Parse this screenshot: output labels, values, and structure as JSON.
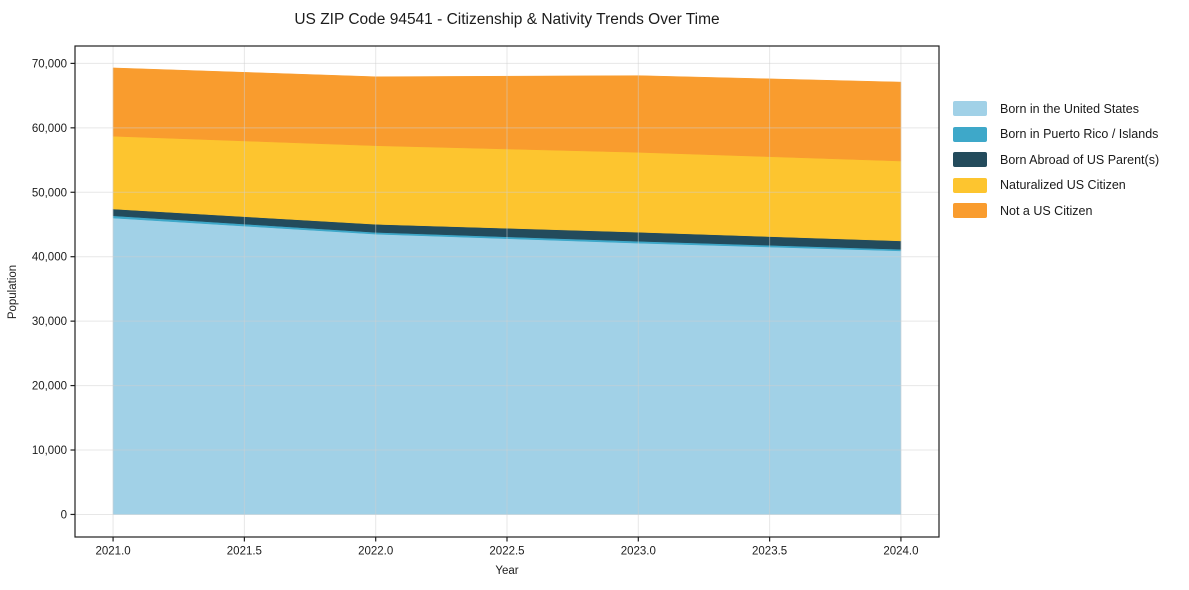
{
  "title": "US ZIP Code 94541 - Citizenship & Nativity Trends Over Time",
  "chart_data": {
    "type": "area",
    "stacked": true,
    "title": "US ZIP Code 94541 - Citizenship & Nativity Trends Over Time",
    "xlabel": "Year",
    "ylabel": "Population",
    "x": [
      2021,
      2022,
      2023,
      2024
    ],
    "series": [
      {
        "name": "Born in the United States",
        "color": "#a1d1e7",
        "values": [
          46000,
          43500,
          42100,
          40900
        ]
      },
      {
        "name": "Born in Puerto Rico / Islands",
        "color": "#3ea8c9",
        "values": [
          350,
          280,
          300,
          250
        ]
      },
      {
        "name": "Born Abroad of US Parent(s)",
        "color": "#234b5c",
        "values": [
          1050,
          1250,
          1400,
          1300
        ]
      },
      {
        "name": "Naturalized US Citizen",
        "color": "#fdc52f",
        "values": [
          11300,
          12200,
          12400,
          12400
        ]
      },
      {
        "name": "Not a US Citizen",
        "color": "#f99c2e",
        "values": [
          10600,
          10700,
          11900,
          12250
        ]
      }
    ],
    "stack_totals": [
      69300,
      67930,
      68100,
      67100
    ],
    "xlim": [
      2020.855,
      2024.145
    ],
    "ylim": [
      -3500,
      72700
    ],
    "x_ticks": {
      "values": [
        2021,
        2021.5,
        2022,
        2022.5,
        2023,
        2023.5,
        2024
      ],
      "labels": [
        "2021.0",
        "2021.5",
        "2022.0",
        "2022.5",
        "2023.0",
        "2023.5",
        "2024.0"
      ]
    },
    "y_ticks": {
      "values": [
        0,
        10000,
        20000,
        30000,
        40000,
        50000,
        60000,
        70000
      ],
      "labels": [
        "0",
        "10,000",
        "20,000",
        "30,000",
        "40,000",
        "50,000",
        "60,000",
        "70,000"
      ]
    },
    "grid": true,
    "legend_position": "right"
  },
  "colors": {
    "frame": "#1f1f1f",
    "grid": "#cfcfcf",
    "tick_text": "#1c1c1c"
  }
}
